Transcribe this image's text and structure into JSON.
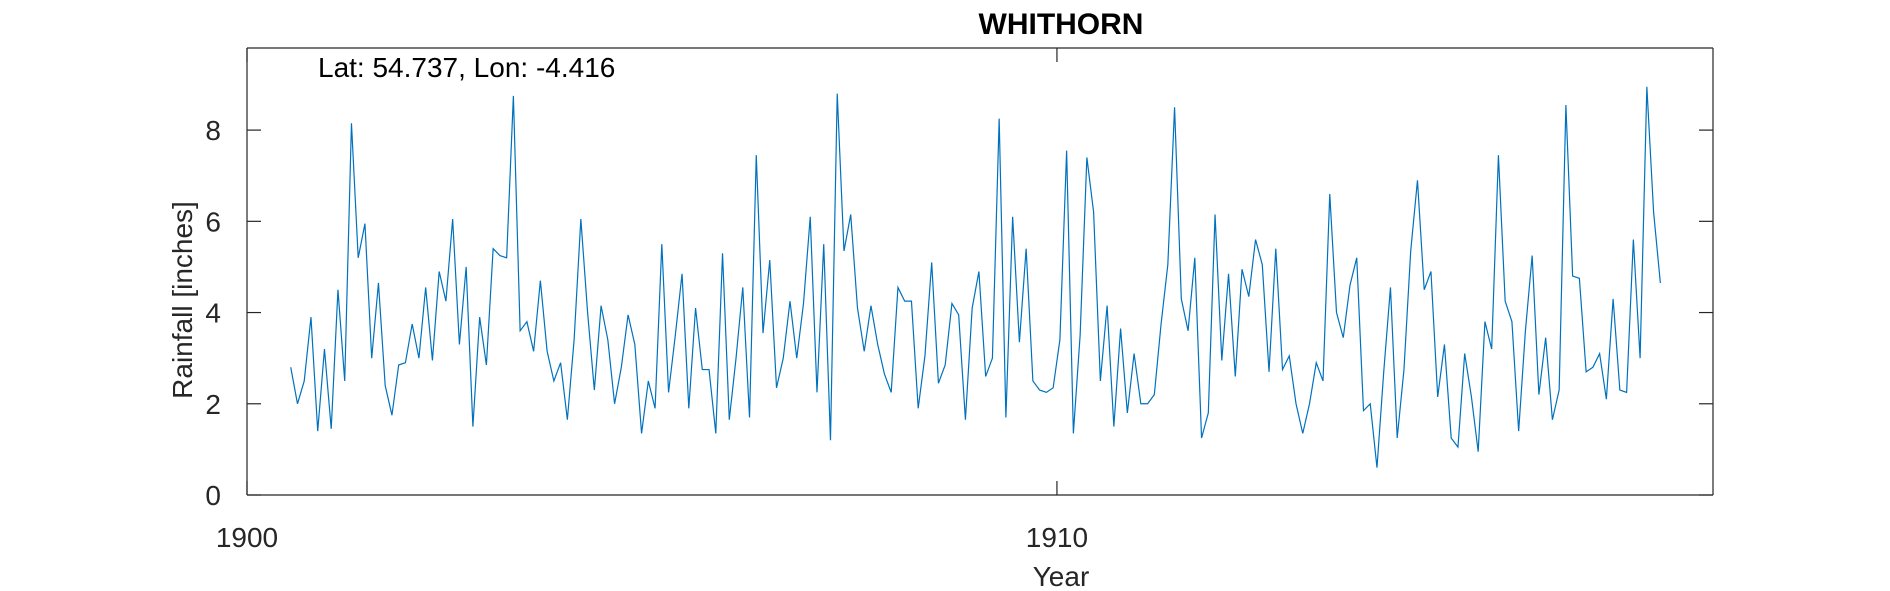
{
  "chart_data": {
    "type": "line",
    "title": "WHITHORN",
    "annotation": "Lat: 54.737, Lon: -4.416",
    "xlabel": "Year",
    "ylabel": "Rainfall [inches]",
    "xlim": [
      1900,
      1918.1
    ],
    "ylim": [
      0,
      9.8
    ],
    "xticks": [
      1900,
      1910
    ],
    "yticks": [
      0,
      2,
      4,
      6,
      8
    ],
    "grid": false,
    "line_color": "#0072BD",
    "series": [
      {
        "name": "",
        "x_start": 1900.54,
        "x_step": 0.0833,
        "values": [
          2.8,
          2.0,
          2.5,
          3.9,
          1.4,
          3.2,
          1.45,
          4.5,
          2.5,
          8.15,
          5.2,
          5.95,
          3.0,
          4.65,
          2.4,
          1.75,
          2.85,
          2.9,
          3.75,
          3.0,
          4.55,
          2.95,
          4.9,
          4.25,
          6.05,
          3.3,
          5.0,
          1.5,
          3.9,
          2.85,
          5.4,
          5.25,
          5.2,
          8.75,
          3.6,
          3.8,
          3.15,
          4.7,
          3.15,
          2.5,
          2.9,
          1.65,
          3.4,
          6.05,
          4.0,
          2.3,
          4.15,
          3.4,
          2.0,
          2.8,
          3.95,
          3.3,
          1.35,
          2.5,
          1.9,
          5.5,
          2.25,
          3.5,
          4.85,
          1.9,
          4.1,
          2.75,
          2.75,
          1.35,
          5.3,
          1.65,
          3.0,
          4.55,
          1.7,
          7.45,
          3.55,
          5.15,
          2.35,
          3.0,
          4.25,
          3.0,
          4.2,
          6.1,
          2.25,
          5.5,
          1.2,
          8.8,
          5.35,
          6.15,
          4.1,
          3.15,
          4.15,
          3.3,
          2.65,
          2.25,
          4.55,
          4.25,
          4.25,
          1.9,
          3.05,
          5.1,
          2.45,
          2.85,
          4.2,
          3.95,
          1.65,
          4.1,
          4.9,
          2.6,
          3.0,
          8.25,
          1.7,
          6.1,
          3.35,
          5.4,
          2.5,
          2.3,
          2.25,
          2.35,
          3.4,
          7.55,
          1.35,
          3.5,
          7.4,
          6.2,
          2.5,
          4.15,
          1.5,
          3.65,
          1.8,
          3.1,
          2.0,
          2.0,
          2.2,
          3.75,
          5.05,
          8.5,
          4.3,
          3.6,
          5.2,
          1.25,
          1.8,
          6.15,
          2.95,
          4.85,
          2.6,
          4.95,
          4.35,
          5.6,
          5.05,
          2.7,
          5.4,
          2.75,
          3.05,
          2.0,
          1.35,
          2.0,
          2.9,
          2.5,
          6.6,
          4.0,
          3.45,
          4.6,
          5.2,
          1.85,
          2.0,
          0.6,
          2.7,
          4.55,
          1.25,
          2.75,
          5.35,
          6.9,
          4.5,
          4.9,
          2.15,
          3.3,
          1.25,
          1.05,
          3.1,
          2.15,
          0.95,
          3.8,
          3.2,
          7.45,
          4.25,
          3.8,
          1.4,
          3.6,
          5.25,
          2.2,
          3.45,
          1.65,
          2.3,
          8.55,
          4.8,
          4.75,
          2.7,
          2.8,
          3.1,
          2.1,
          4.3,
          2.3,
          2.25,
          5.6,
          3.0,
          8.95,
          6.2,
          4.65
        ]
      }
    ]
  }
}
